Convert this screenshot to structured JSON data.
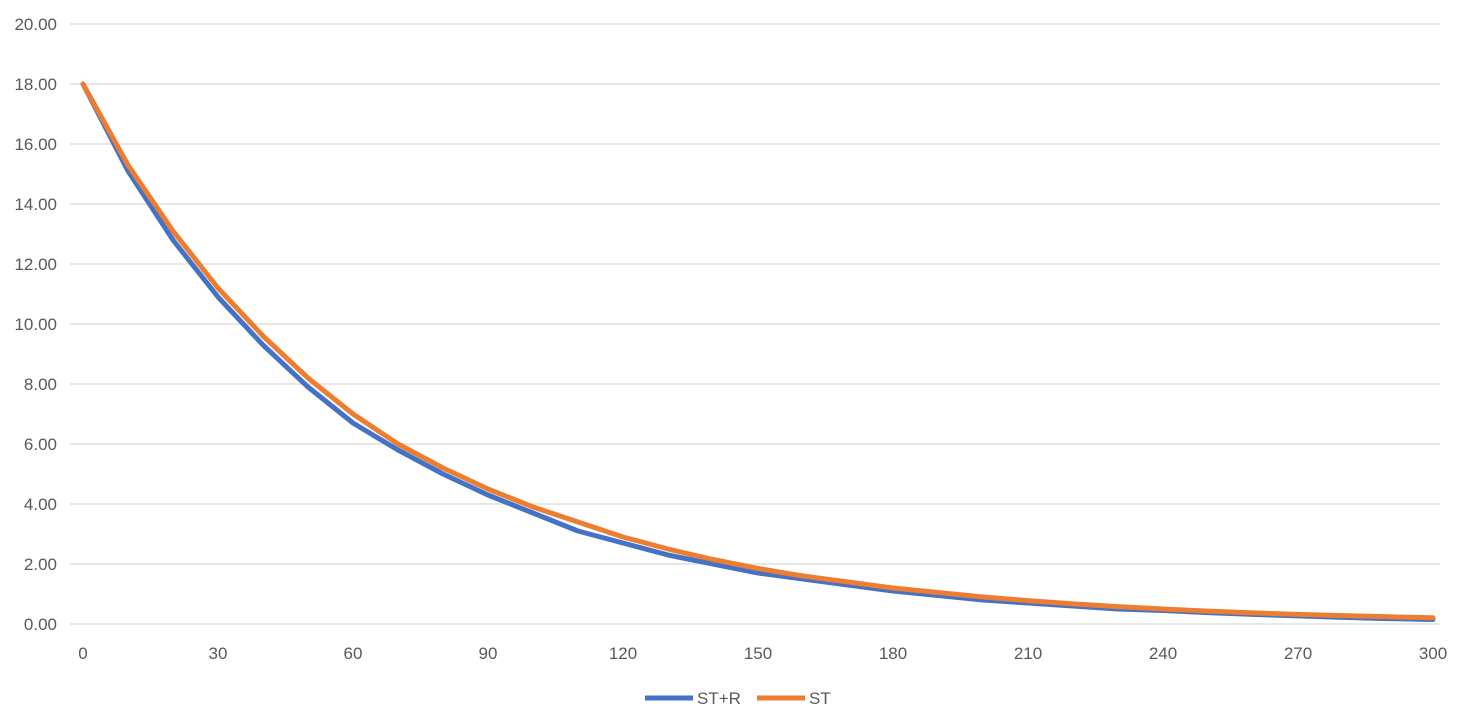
{
  "chart_data": {
    "type": "line",
    "title": "",
    "xlabel": "",
    "ylabel": "",
    "xlim": [
      0,
      300
    ],
    "ylim": [
      0,
      20
    ],
    "x_ticks": [
      "0",
      "30",
      "60",
      "90",
      "120",
      "150",
      "180",
      "210",
      "240",
      "270",
      "300"
    ],
    "y_ticks": [
      "0.00",
      "2.00",
      "4.00",
      "6.00",
      "8.00",
      "10.00",
      "12.00",
      "14.00",
      "16.00",
      "18.00",
      "20.00"
    ],
    "grid": true,
    "legend_position": "bottom",
    "x": [
      0,
      10,
      20,
      30,
      40,
      50,
      60,
      70,
      80,
      90,
      100,
      110,
      120,
      130,
      140,
      150,
      160,
      170,
      180,
      190,
      200,
      210,
      220,
      230,
      240,
      250,
      260,
      270,
      280,
      290,
      300
    ],
    "series": [
      {
        "name": "ST+R",
        "color": "#4472c4",
        "values": [
          18.0,
          15.1,
          12.8,
          10.9,
          9.3,
          7.9,
          6.7,
          5.8,
          5.0,
          4.3,
          3.7,
          3.1,
          2.7,
          2.3,
          2.0,
          1.7,
          1.5,
          1.3,
          1.1,
          0.95,
          0.8,
          0.7,
          0.6,
          0.5,
          0.45,
          0.38,
          0.32,
          0.27,
          0.22,
          0.18,
          0.15
        ]
      },
      {
        "name": "ST",
        "color": "#ed7d31",
        "values": [
          18.0,
          15.3,
          13.1,
          11.2,
          9.6,
          8.2,
          7.0,
          6.0,
          5.2,
          4.5,
          3.9,
          3.4,
          2.9,
          2.5,
          2.15,
          1.85,
          1.6,
          1.4,
          1.2,
          1.05,
          0.9,
          0.78,
          0.67,
          0.58,
          0.5,
          0.43,
          0.37,
          0.32,
          0.28,
          0.24,
          0.21
        ]
      }
    ]
  }
}
